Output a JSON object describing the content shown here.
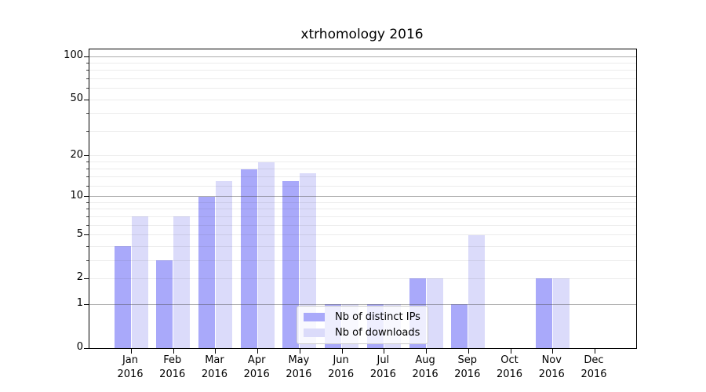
{
  "title": "xtrhomology 2016",
  "chart_data": {
    "type": "bar",
    "title": "xtrhomology 2016",
    "categories": [
      "Jan",
      "Feb",
      "Mar",
      "Apr",
      "May",
      "Jun",
      "Jul",
      "Aug",
      "Sep",
      "Oct",
      "Nov",
      "Dec"
    ],
    "category_year": "2016",
    "series": [
      {
        "name": "Nb of distinct IPs",
        "color": "#a9a9fa",
        "values": [
          4,
          3,
          10,
          16,
          13,
          1,
          1,
          2,
          1,
          0,
          2,
          0
        ]
      },
      {
        "name": "Nb of downloads",
        "color": "#dbdbfa",
        "values": [
          7,
          7,
          13,
          18,
          15,
          1,
          1,
          2,
          5,
          0,
          2,
          0
        ]
      }
    ],
    "yscale": "log1p",
    "ylim": [
      0,
      112
    ],
    "yticks": [
      {
        "value": 100,
        "label": "100"
      },
      {
        "value": 50,
        "label": "50"
      },
      {
        "value": 20,
        "label": "20"
      },
      {
        "value": 10,
        "label": "10"
      },
      {
        "value": 5,
        "label": "5"
      },
      {
        "value": 2,
        "label": "2"
      },
      {
        "value": 1,
        "label": "1"
      },
      {
        "value": 0,
        "label": "0"
      }
    ],
    "yticks_major_grid": [
      1,
      10,
      100
    ],
    "yticks_minor": [
      3,
      4,
      6,
      7,
      8,
      9,
      12,
      14,
      16,
      18,
      30,
      40,
      60,
      70,
      80,
      90
    ],
    "grid": true,
    "legend_position": "lower-center",
    "legend_entries": [
      "Nb of distinct IPs",
      "Nb of downloads"
    ]
  }
}
